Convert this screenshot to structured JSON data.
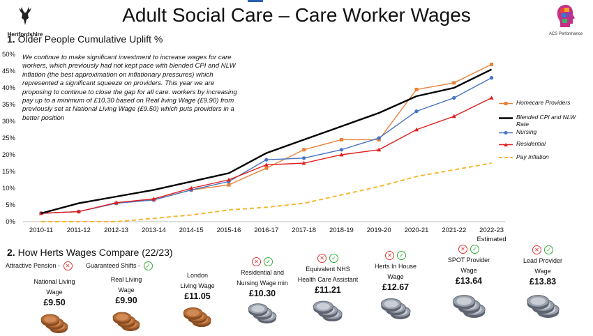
{
  "header": {
    "title": "Adult Social Care – Care Worker Wages",
    "left_logo_text": "Hertfordshire",
    "right_logo_text": "ACS Performance"
  },
  "section1": {
    "number": "1.",
    "title": "Older People Cumulative Uplift %"
  },
  "chart_note": "We continue to make significant investment to increase wages for care workers, which previously had not kept pace with blended CPI and NLW inflation (the best approximation on inflationary pressures) which represented a significant squeeze on providers. This year we are proposing to continue to close the gap for all care. workers by increasing pay up to a minimum of £10.30 based on Real living Wage (£9.90) from previously set at National Living Wage (£9.50) which puts providers in a better position",
  "chart_data": {
    "type": "line",
    "categories": [
      "2010-11",
      "2011-12",
      "2012-13",
      "2013-14",
      "2014-15",
      "2015-16",
      "2016-17",
      "2017-18",
      "2018-19",
      "2019-20",
      "2020-21",
      "2021-22",
      "2022-23"
    ],
    "category_sublabel_last": "Estimated",
    "ylim": [
      0,
      50
    ],
    "yticks": [
      "0%",
      "5%",
      "10%",
      "15%",
      "20%",
      "25%",
      "30%",
      "35%",
      "40%",
      "45%",
      "50%"
    ],
    "series": [
      {
        "name": "Homecare Providers",
        "color": "#e8823a",
        "marker": "square",
        "dash": false,
        "values": [
          2.5,
          3,
          5.5,
          6.5,
          9.5,
          11,
          16,
          21.5,
          24.5,
          24.5,
          39.5,
          41.5,
          47
        ]
      },
      {
        "name": "Blended CPI and NLW Rate",
        "color": "#000000",
        "marker": "none",
        "dash": false,
        "values": [
          2.5,
          5.5,
          7.5,
          9.5,
          12,
          14.5,
          20.5,
          24.5,
          28.5,
          32.5,
          37.5,
          40,
          45.5
        ]
      },
      {
        "name": "Nursing",
        "color": "#4472c4",
        "marker": "circle",
        "dash": false,
        "values": [
          2.5,
          3,
          5.5,
          6.5,
          9.5,
          12,
          18.5,
          19,
          21.5,
          25,
          33,
          37,
          43
        ]
      },
      {
        "name": "Residential",
        "color": "#e02020",
        "marker": "triangle",
        "dash": false,
        "values": [
          2.5,
          3,
          5.7,
          6.8,
          10,
          12.5,
          17,
          17.5,
          20,
          21.5,
          27.5,
          31.5,
          37
        ]
      },
      {
        "name": "Pay Inflation",
        "color": "#f5b731",
        "marker": "none",
        "dash": true,
        "values": [
          0,
          0,
          0,
          1,
          2,
          3.5,
          4.3,
          5.5,
          8,
          10.5,
          13.5,
          15.5,
          17.5
        ]
      }
    ]
  },
  "section2": {
    "number": "2.",
    "title": "How Herts Wages Compare (22/23)"
  },
  "tags": {
    "pension": "Attractive Pension -",
    "shifts": "Guaranteed Shifts -"
  },
  "wages": [
    {
      "label1": "National Living",
      "label2": "Wage",
      "price": "£9.50",
      "pension": null,
      "shifts": null,
      "coin": "bronze"
    },
    {
      "label1": "Real Living",
      "label2": "Wage",
      "price": "£9.90",
      "pension": null,
      "shifts": null,
      "coin": "bronze"
    },
    {
      "label1": "London",
      "label2": "Living Wage",
      "price": "£11.05",
      "pension": null,
      "shifts": null,
      "coin": "bronze"
    },
    {
      "label1": "Residential and",
      "label2": "Nursing Wage min",
      "price": "£10.30",
      "pension": "x",
      "shifts": "ok",
      "coin": "silver"
    },
    {
      "label1": "Equivalent NHS",
      "label2": "Health Care Assistant",
      "price": "£11.21",
      "pension": "x",
      "shifts": "ok",
      "coin": "silver"
    },
    {
      "label1": "Herts In House",
      "label2": "Wage",
      "price": "£12.67",
      "pension": "x",
      "shifts": "ok",
      "coin": "silver"
    },
    {
      "label1": "SPOT Provider",
      "label2": "Wage",
      "price": "£13.64",
      "pension": "x",
      "shifts": "ok",
      "coin": "silver"
    },
    {
      "label1": "Lead Provider",
      "label2": "Wage",
      "price": "£13.83",
      "pension": "x",
      "shifts": "ok",
      "coin": "silver"
    }
  ]
}
